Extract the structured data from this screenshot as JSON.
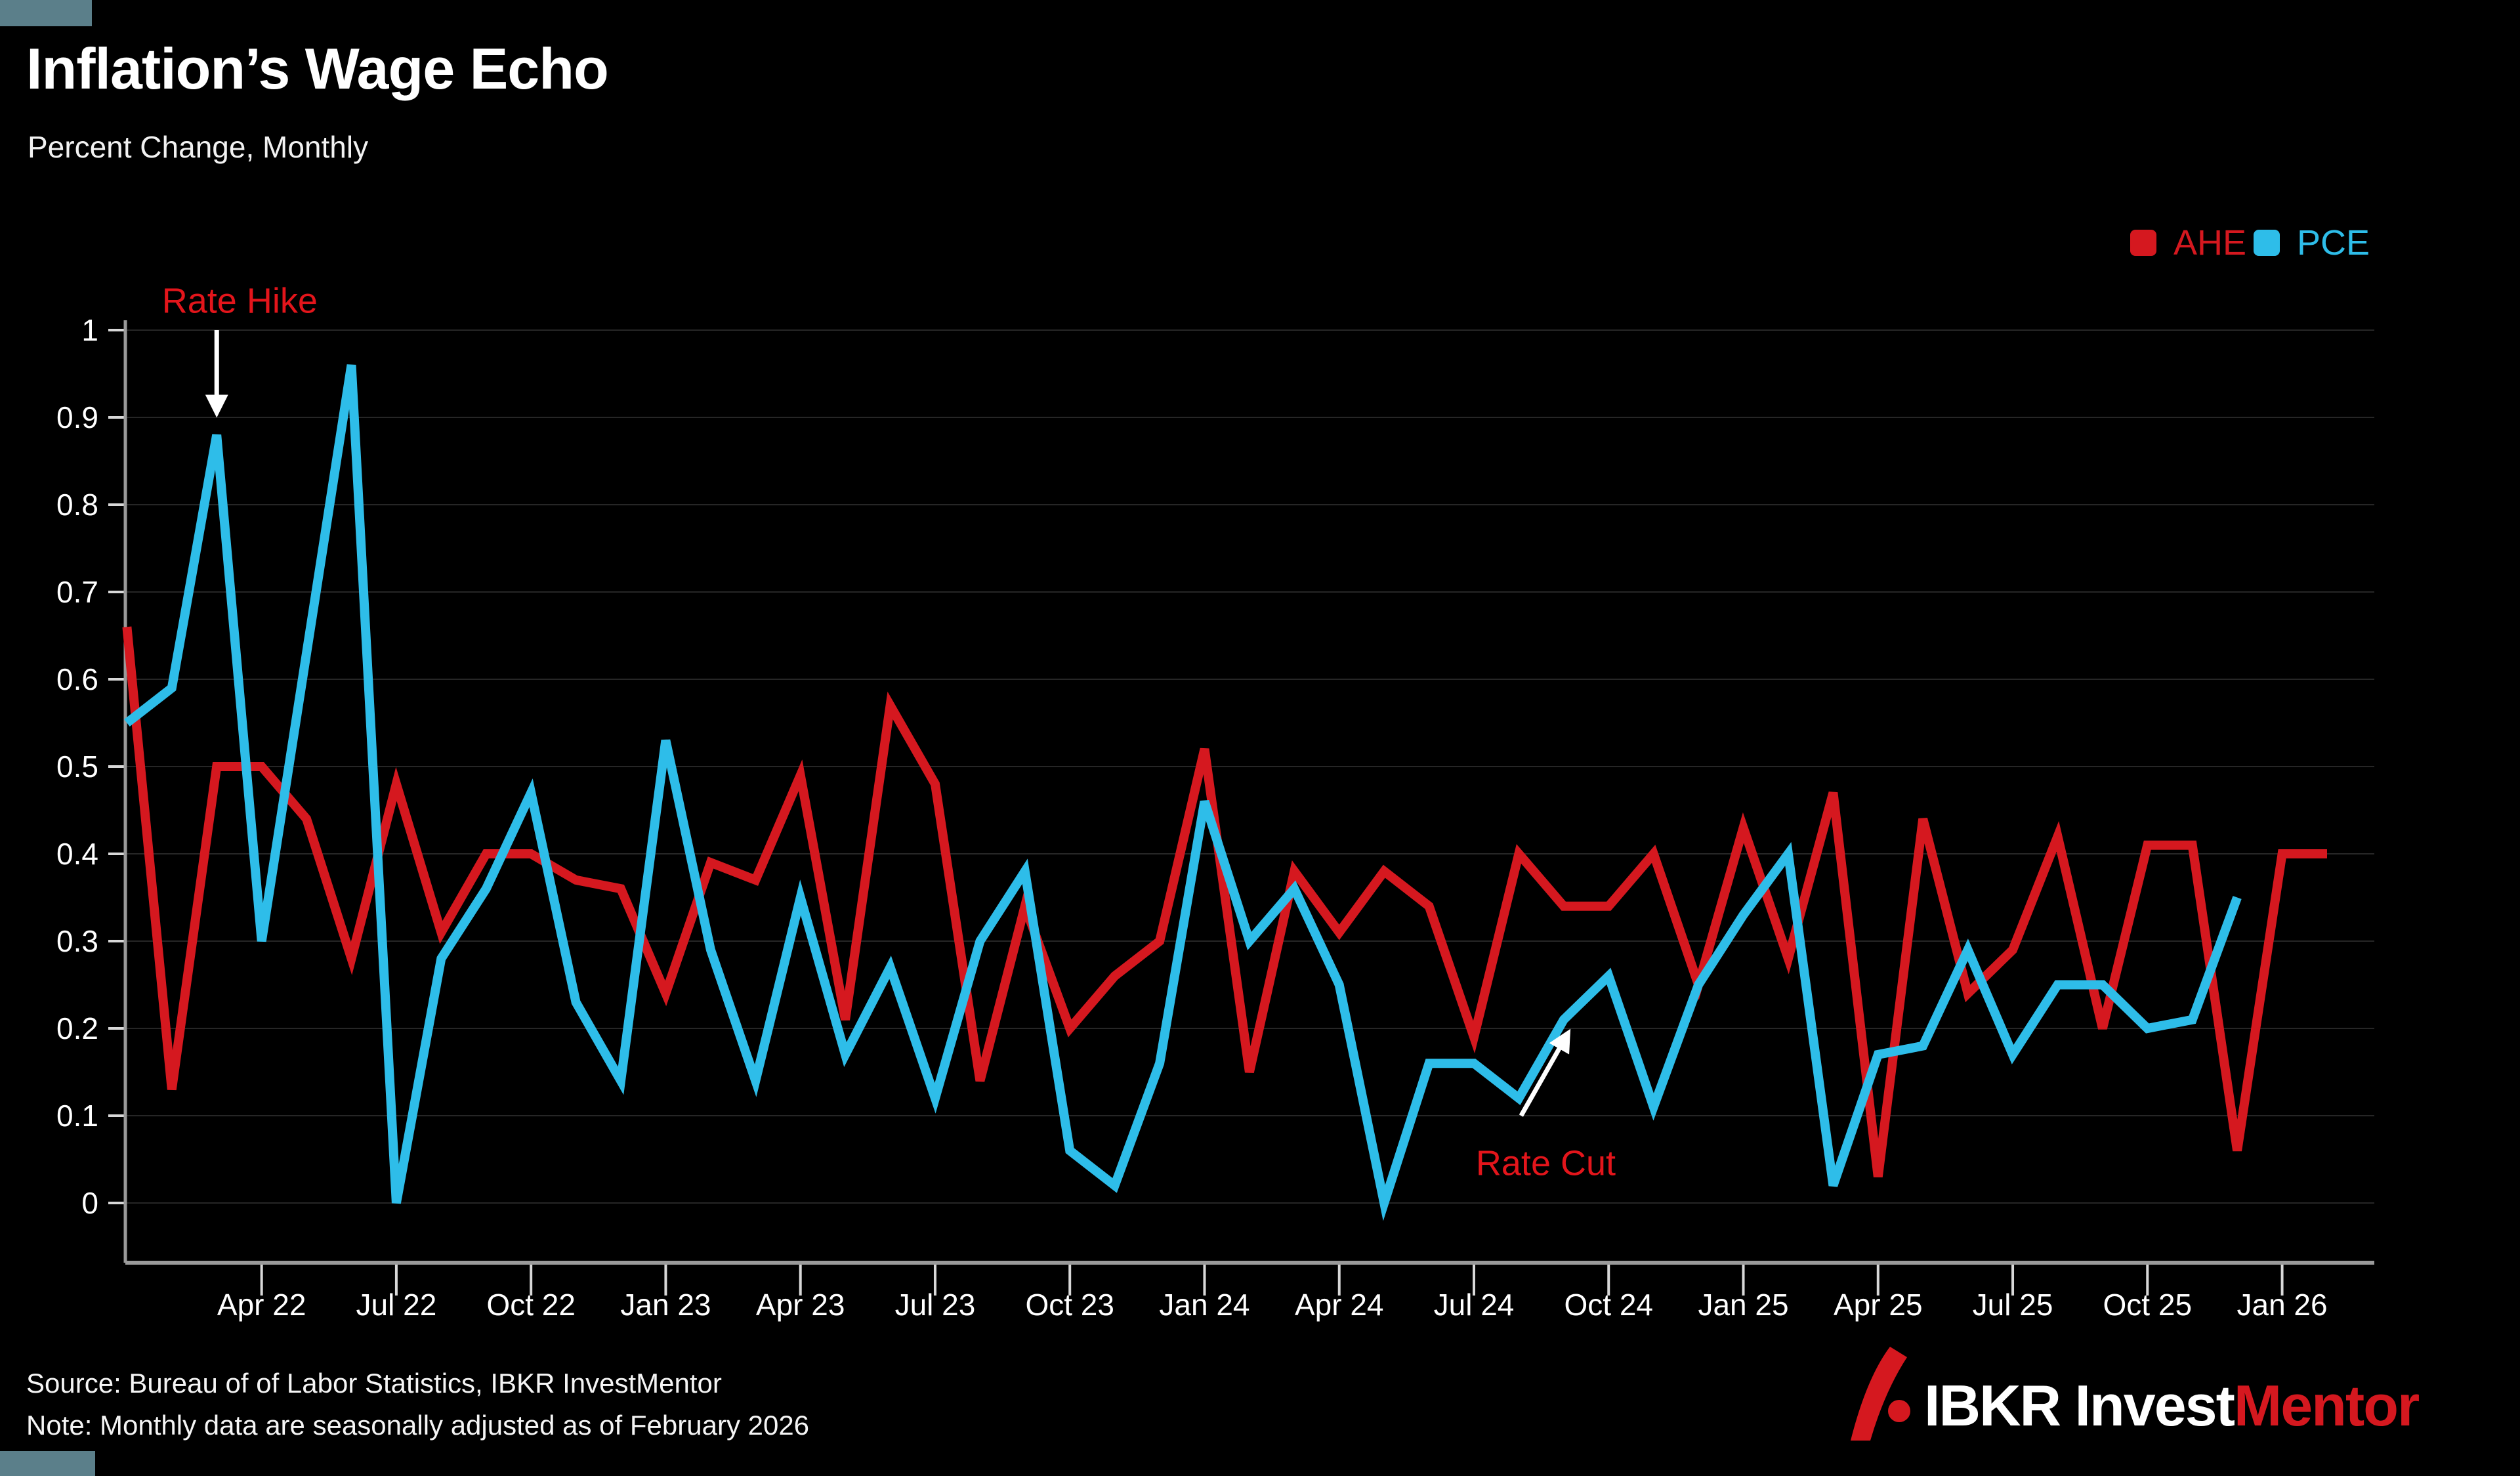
{
  "page": {
    "background": "#000000",
    "corner_accent_color": "#5b7f8a"
  },
  "header": {
    "title": "Inflation’s Wage Echo",
    "subtitle": "Percent Change, Monthly"
  },
  "legend": {
    "position": "top-right",
    "items": [
      {
        "label": "AHE",
        "color": "#d5181f"
      },
      {
        "label": "PCE",
        "color": "#2ebde9"
      }
    ]
  },
  "footer": {
    "source": "Source: Bureau of of Labor Statistics, IBKR InvestMentor",
    "note": "Note: Monthly data are seasonally adjusted as of February 2026"
  },
  "logo": {
    "part1": "IBKR Invest",
    "part2": "Mentor",
    "accent_color": "#d5181f"
  },
  "chart_data": {
    "type": "line",
    "title": "Inflation’s Wage Echo",
    "subtitle": "Percent Change, Monthly",
    "xlabel": "",
    "ylabel": "",
    "grid": "horizontal",
    "legend_position": "top-right",
    "ylim": [
      0,
      1
    ],
    "y_tick_labels": [
      "0",
      "0.1",
      "0.2",
      "0.3",
      "0.4",
      "0.5",
      "0.6",
      "0.7",
      "0.8",
      "0.9",
      "1"
    ],
    "x_start_month": "Jan 2022",
    "x_tick_labels": [
      "Apr 22",
      "Jul 22",
      "Oct 22",
      "Jan 23",
      "Apr 23",
      "Jul 23",
      "Oct 23",
      "Jan 24",
      "Apr 24",
      "Jul 24",
      "Oct 24",
      "Jan 25",
      "Apr 25",
      "Jul 25",
      "Oct 25",
      "Jan 26"
    ],
    "x_tick_month_index": [
      3,
      6,
      9,
      12,
      15,
      18,
      21,
      24,
      27,
      30,
      33,
      36,
      39,
      42,
      45,
      48
    ],
    "series": [
      {
        "name": "AHE",
        "color": "#d5181f",
        "start_month_index": 0,
        "values": [
          0.66,
          0.13,
          0.5,
          0.5,
          0.44,
          0.28,
          0.48,
          0.31,
          0.4,
          0.4,
          0.37,
          0.36,
          0.24,
          0.39,
          0.37,
          0.49,
          0.21,
          0.57,
          0.48,
          0.14,
          0.34,
          0.2,
          0.26,
          0.3,
          0.52,
          0.15,
          0.38,
          0.31,
          0.38,
          0.34,
          0.19,
          0.4,
          0.34,
          0.34,
          0.4,
          0.25,
          0.43,
          0.28,
          0.47,
          0.03,
          0.44,
          0.24,
          0.29,
          0.42,
          0.2,
          0.41,
          0.41,
          0.06,
          0.4,
          0.4
        ]
      },
      {
        "name": "PCE",
        "color": "#2ebde9",
        "start_month_index": 0,
        "values": [
          0.55,
          0.59,
          0.88,
          0.3,
          0.63,
          0.96,
          0.0,
          0.28,
          0.36,
          0.47,
          0.23,
          0.14,
          0.53,
          0.29,
          0.14,
          0.35,
          0.17,
          0.27,
          0.12,
          0.3,
          0.38,
          0.06,
          0.02,
          0.16,
          0.46,
          0.3,
          0.36,
          0.25,
          0.0,
          0.16,
          0.16,
          0.12,
          0.21,
          0.26,
          0.11,
          0.25,
          0.33,
          0.4,
          0.02,
          0.17,
          0.18,
          0.29,
          0.17,
          0.25,
          0.25,
          0.2,
          0.21,
          0.35
        ]
      }
    ],
    "annotations": [
      {
        "text": "Rate Hike",
        "color": "#e3151b",
        "anchor": "start",
        "label_month": 0.78,
        "label_value": 1.02,
        "arrow_from": {
          "month": 2.0,
          "value": 1.0
        },
        "arrow_to": {
          "month": 2.0,
          "value": 0.905
        },
        "target": {
          "series": "PCE",
          "month_label": "Mar 22",
          "value": 0.88
        }
      },
      {
        "text": "Rate Cut",
        "color": "#e3151b",
        "anchor": "middle",
        "label_month": 31.6,
        "label_value": 0.032,
        "arrow_from": {
          "month": 31.05,
          "value": 0.1
        },
        "arrow_to": {
          "month": 32.1,
          "value": 0.195
        },
        "target": {
          "series": "PCE",
          "month_label": "Sep 24",
          "value": 0.21
        }
      }
    ]
  }
}
